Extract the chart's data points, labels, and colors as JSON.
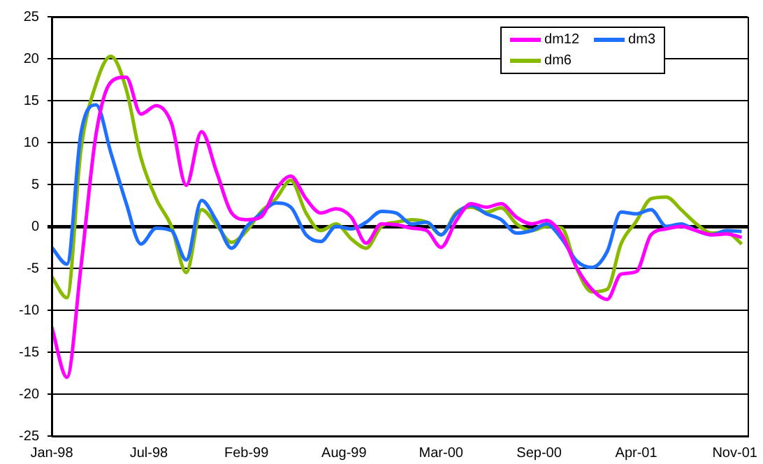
{
  "chart_data": {
    "type": "line",
    "x": [
      "1998-01-15",
      "1998-02-15",
      "1998-03-15",
      "1998-04-15",
      "1998-05-15",
      "1998-06-15",
      "1998-07-15",
      "1998-08-15",
      "1998-09-15",
      "1998-10-15",
      "1998-11-15",
      "1998-12-15",
      "1999-01-15",
      "1999-02-15",
      "1999-03-15",
      "1999-04-15",
      "1999-05-15",
      "1999-06-15",
      "1999-07-15",
      "1999-08-15",
      "1999-09-15",
      "1999-10-15",
      "1999-11-15",
      "1999-12-15",
      "2000-01-15",
      "2000-02-15",
      "2000-03-15",
      "2000-04-15",
      "2000-05-15",
      "2000-06-15",
      "2000-07-15",
      "2000-08-15",
      "2000-09-15",
      "2000-10-15",
      "2000-11-15",
      "2000-12-15",
      "2001-01-15",
      "2001-02-15",
      "2001-03-15",
      "2001-04-15",
      "2001-05-15",
      "2001-06-15",
      "2001-07-15",
      "2001-08-15",
      "2001-09-15",
      "2001-10-15",
      "2001-11-15"
    ],
    "series": [
      {
        "name": "dm12",
        "color": "#ff00ff",
        "values": [
          -12,
          -18,
          -5,
          11,
          17.2,
          17.8,
          13.4,
          14.4,
          12.3,
          4.9,
          11.3,
          6.6,
          1.6,
          0.8,
          1.1,
          4.4,
          6,
          3.3,
          1.6,
          2.1,
          1.1,
          -2,
          0.3,
          0.2,
          -0.2,
          -0.5,
          -2.5,
          0.7,
          2.7,
          2.3,
          2.7,
          1.1,
          0.3,
          0.7,
          -1,
          -4.9,
          -7.5,
          -8.7,
          -5.7,
          -5.4,
          -1,
          -0.3,
          0,
          -0.5,
          -1,
          -0.9,
          -1.3
        ]
      },
      {
        "name": "dm3",
        "color": "#2070ff",
        "values": [
          -2.5,
          -4.5,
          11,
          14.5,
          8.8,
          2.8,
          -2.1,
          -0.2,
          -0.5,
          -4,
          3.1,
          0.7,
          -2.6,
          0,
          1.5,
          2.8,
          2.3,
          -1,
          -1.8,
          0,
          -0.3,
          0.5,
          1.8,
          1.6,
          0.3,
          0.5,
          -1,
          1.5,
          2.5,
          1.5,
          0.8,
          -0.8,
          -0.5,
          0.3,
          -1.5,
          -4.1,
          -4.9,
          -3,
          1.7,
          1.5,
          2,
          0,
          0.3,
          -0.5,
          -1,
          -0.5,
          -0.6
        ]
      },
      {
        "name": "dm6",
        "color": "#88bb00",
        "values": [
          -6,
          -8.5,
          9,
          17,
          20.3,
          16.4,
          8.2,
          3.3,
          0,
          -5.5,
          2,
          0.2,
          -1.9,
          -0.5,
          1.7,
          3.3,
          5.5,
          1.6,
          -0.5,
          0.3,
          -1.5,
          -2.6,
          0,
          0.5,
          0.8,
          0.5,
          -1,
          1.7,
          2.3,
          1.7,
          2.2,
          0.3,
          -0.5,
          0,
          -0.2,
          -5,
          -7.8,
          -7.5,
          -2.1,
          0.6,
          3.3,
          3.5,
          2,
          0.3,
          -0.8,
          -0.7,
          -2.1
        ]
      }
    ],
    "xlim": [
      "1998-01-15",
      "2001-11-27"
    ],
    "xticks": [
      {
        "value": "1998-01-15",
        "label": "Jan-98"
      },
      {
        "value": "1998-07-31",
        "label": "Jul-98"
      },
      {
        "value": "1999-02-14",
        "label": "Feb-99"
      },
      {
        "value": "1999-08-31",
        "label": "Aug-99"
      },
      {
        "value": "2000-03-15",
        "label": "Mar-00"
      },
      {
        "value": "2000-09-30",
        "label": "Sep-00"
      },
      {
        "value": "2001-04-15",
        "label": "Apr-01"
      },
      {
        "value": "2001-11-01",
        "label": "Nov-01"
      }
    ],
    "ylim": [
      -25,
      25
    ],
    "yticks": [
      -25,
      -20,
      -15,
      -10,
      -5,
      0,
      5,
      10,
      15,
      20,
      25
    ],
    "grid": "y",
    "legend": "top right",
    "marker": "none"
  }
}
